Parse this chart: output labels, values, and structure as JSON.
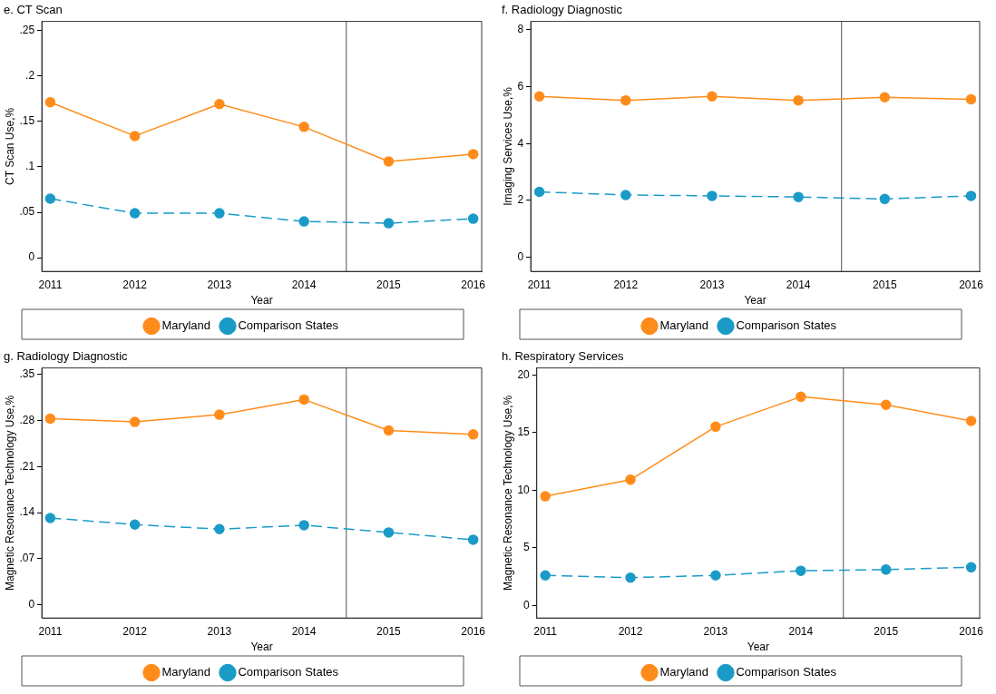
{
  "chart_data": [
    {
      "type": "line",
      "title": "e. CT Scan",
      "xlabel": "Year",
      "ylabel": "CT Scan Use,%",
      "x": [
        2011,
        2012,
        2013,
        2014,
        2015,
        2016
      ],
      "xlim": [
        2010.9,
        2016.1
      ],
      "xticks": [
        2011,
        2012,
        2013,
        2014,
        2015,
        2016
      ],
      "ylim": [
        -0.015,
        0.26
      ],
      "yticks": [
        0,
        {
          "value": 0.05,
          "label": ".05"
        },
        {
          "value": 0.1,
          "label": ".1"
        },
        {
          "value": 0.15,
          "label": ".15"
        },
        {
          "value": 0.2,
          "label": ".2"
        },
        {
          "value": 0.25,
          "label": ".25"
        }
      ],
      "marker": "circle",
      "legend": "bottom",
      "grid": false,
      "series": [
        {
          "name": "Maryland",
          "color": "#ff8c1a",
          "line_style": "solid",
          "values": [
            0.171,
            0.134,
            0.169,
            0.144,
            0.106,
            0.114
          ]
        },
        {
          "name": "Comparison States",
          "color": "#1a9bc7",
          "line_style": "dashed",
          "values": [
            0.065,
            0.049,
            0.049,
            0.04,
            0.038,
            0.043
          ]
        }
      ],
      "ref_lines": [
        {
          "axis": "x",
          "value": 2014.5,
          "color": "#555555"
        }
      ]
    },
    {
      "type": "line",
      "title": "f. Radiology Diagnostic",
      "xlabel": "Year",
      "ylabel": "Imaging Services Use,%",
      "x": [
        2011,
        2012,
        2013,
        2014,
        2015,
        2016
      ],
      "xlim": [
        2010.9,
        2016.1
      ],
      "xticks": [
        2011,
        2012,
        2013,
        2014,
        2015,
        2016
      ],
      "ylim": [
        -0.5,
        8.3
      ],
      "yticks": [
        0,
        2,
        4,
        6,
        8
      ],
      "marker": "circle",
      "legend": "bottom",
      "grid": false,
      "series": [
        {
          "name": "Maryland",
          "color": "#ff8c1a",
          "line_style": "solid",
          "values": [
            5.66,
            5.52,
            5.66,
            5.52,
            5.63,
            5.56
          ]
        },
        {
          "name": "Comparison States",
          "color": "#1a9bc7",
          "line_style": "dashed",
          "values": [
            2.3,
            2.19,
            2.16,
            2.12,
            2.05,
            2.16
          ]
        }
      ],
      "ref_lines": [
        {
          "axis": "x",
          "value": 2014.5,
          "color": "#555555"
        }
      ]
    },
    {
      "type": "line",
      "title": "g. Radiology Diagnostic",
      "xlabel": "Year",
      "ylabel": "Magnetic Resonance Technology Use,%",
      "x": [
        2011,
        2012,
        2013,
        2014,
        2015,
        2016
      ],
      "xlim": [
        2010.9,
        2016.1
      ],
      "xticks": [
        2011,
        2012,
        2013,
        2014,
        2015,
        2016
      ],
      "ylim": [
        -0.02,
        0.36
      ],
      "yticks": [
        0,
        {
          "value": 0.07,
          "label": ".07"
        },
        {
          "value": 0.14,
          "label": ".14"
        },
        {
          "value": 0.21,
          "label": ".21"
        },
        {
          "value": 0.28,
          "label": ".28"
        },
        {
          "value": 0.35,
          "label": ".35"
        }
      ],
      "marker": "circle",
      "legend": "bottom",
      "grid": false,
      "series": [
        {
          "name": "Maryland",
          "color": "#ff8c1a",
          "line_style": "solid",
          "values": [
            0.283,
            0.278,
            0.289,
            0.312,
            0.265,
            0.259
          ]
        },
        {
          "name": "Comparison States",
          "color": "#1a9bc7",
          "line_style": "dashed",
          "values": [
            0.132,
            0.122,
            0.115,
            0.121,
            0.11,
            0.099
          ]
        }
      ],
      "ref_lines": [
        {
          "axis": "x",
          "value": 2014.5,
          "color": "#555555"
        }
      ]
    },
    {
      "type": "line",
      "title": "h. Respiratory Services",
      "xlabel": "Year",
      "ylabel": "Magnetic Resonance Technology Use,%",
      "x": [
        2011,
        2012,
        2013,
        2014,
        2015,
        2016
      ],
      "xlim": [
        2010.9,
        2016.1
      ],
      "xticks": [
        2011,
        2012,
        2013,
        2014,
        2015,
        2016
      ],
      "ylim": [
        -1.1,
        20.6
      ],
      "yticks": [
        0,
        5,
        10,
        15,
        20
      ],
      "marker": "circle",
      "legend": "bottom",
      "grid": false,
      "series": [
        {
          "name": "Maryland",
          "color": "#ff8c1a",
          "line_style": "solid",
          "values": [
            9.46,
            10.9,
            15.5,
            18.1,
            17.4,
            16.0
          ]
        },
        {
          "name": "Comparison States",
          "color": "#1a9bc7",
          "line_style": "dashed",
          "values": [
            2.6,
            2.4,
            2.6,
            3.0,
            3.1,
            3.3
          ]
        }
      ],
      "ref_lines": [
        {
          "axis": "x",
          "value": 2014.5,
          "color": "#555555"
        }
      ]
    }
  ]
}
